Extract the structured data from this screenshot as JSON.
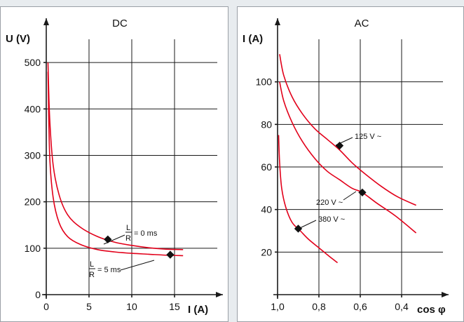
{
  "chart_data": [
    {
      "type": "line",
      "title": "DC",
      "xlabel": "I (A)",
      "ylabel": "U (V)",
      "xlim": [
        0,
        20
      ],
      "ylim": [
        0,
        550
      ],
      "x_ticks": [
        0,
        5,
        10,
        15
      ],
      "y_ticks": [
        0,
        100,
        200,
        300,
        400,
        500
      ],
      "grid": true,
      "series": [
        {
          "name": "L/R = 0 ms",
          "color": "#e2001a",
          "points": [
            [
              0.2,
              500
            ],
            [
              0.4,
              380
            ],
            [
              0.8,
              280
            ],
            [
              1.5,
              215
            ],
            [
              2.5,
              172
            ],
            [
              4,
              145
            ],
            [
              6,
              125
            ],
            [
              8,
              113
            ],
            [
              10,
              106
            ],
            [
              12,
              101
            ],
            [
              14,
              98
            ],
            [
              16,
              97
            ]
          ]
        },
        {
          "name": "L/R = 5 ms",
          "color": "#e2001a",
          "points": [
            [
              0.2,
              480
            ],
            [
              0.4,
              300
            ],
            [
              0.8,
              210
            ],
            [
              1.5,
              155
            ],
            [
              2.5,
              125
            ],
            [
              4,
              108
            ],
            [
              6,
              97
            ],
            [
              8,
              92
            ],
            [
              10,
              89
            ],
            [
              12,
              87
            ],
            [
              14,
              85
            ],
            [
              16,
              84
            ]
          ]
        }
      ],
      "annotations": [
        {
          "frac_num": "L",
          "frac_den": "R",
          "text": "= 0 ms",
          "at": [
            7.2,
            119
          ]
        },
        {
          "frac_num": "L",
          "frac_den": "R",
          "text": "= 5 ms",
          "at": [
            14.5,
            86
          ]
        }
      ]
    },
    {
      "type": "line",
      "title": "AC",
      "xlabel": "cos φ",
      "ylabel": "I (A)",
      "xlim": [
        1.0,
        0.2
      ],
      "ylim": [
        0,
        120
      ],
      "x_ticks": [
        1.0,
        0.8,
        0.6,
        0.4
      ],
      "x_tick_labels": [
        "1,0",
        "0,8",
        "0,6",
        "0,4"
      ],
      "y_ticks": [
        20,
        40,
        60,
        80,
        100
      ],
      "grid": true,
      "series": [
        {
          "name": "125 V ~",
          "color": "#e2001a",
          "points": [
            [
              0.99,
              113
            ],
            [
              0.97,
              103
            ],
            [
              0.93,
              93
            ],
            [
              0.88,
              85
            ],
            [
              0.82,
              78
            ],
            [
              0.76,
              73
            ],
            [
              0.7,
              68
            ],
            [
              0.64,
              62
            ],
            [
              0.58,
              57
            ],
            [
              0.5,
              51
            ],
            [
              0.42,
              46
            ],
            [
              0.33,
              42
            ]
          ]
        },
        {
          "name": "220 V ~",
          "color": "#e2001a",
          "points": [
            [
              0.99,
              100
            ],
            [
              0.97,
              91
            ],
            [
              0.93,
              81
            ],
            [
              0.88,
              72
            ],
            [
              0.82,
              64
            ],
            [
              0.76,
              58
            ],
            [
              0.7,
              54
            ],
            [
              0.64,
              50
            ],
            [
              0.59,
              48
            ],
            [
              0.52,
              43
            ],
            [
              0.43,
              37
            ],
            [
              0.33,
              29
            ]
          ]
        },
        {
          "name": "380 V ~",
          "color": "#e2001a",
          "points": [
            [
              0.995,
              75
            ],
            [
              0.99,
              62
            ],
            [
              0.98,
              50
            ],
            [
              0.96,
              41
            ],
            [
              0.93,
              34
            ],
            [
              0.89,
              30
            ],
            [
              0.85,
              26
            ],
            [
              0.8,
              22
            ],
            [
              0.75,
              18
            ],
            [
              0.71,
              15
            ]
          ]
        }
      ],
      "annotations": [
        {
          "text": "125 V ~",
          "at": [
            0.7,
            70
          ]
        },
        {
          "text": "220 V ~",
          "at": [
            0.59,
            48
          ]
        },
        {
          "text": "380 V ~",
          "at": [
            0.9,
            31
          ]
        }
      ]
    }
  ]
}
